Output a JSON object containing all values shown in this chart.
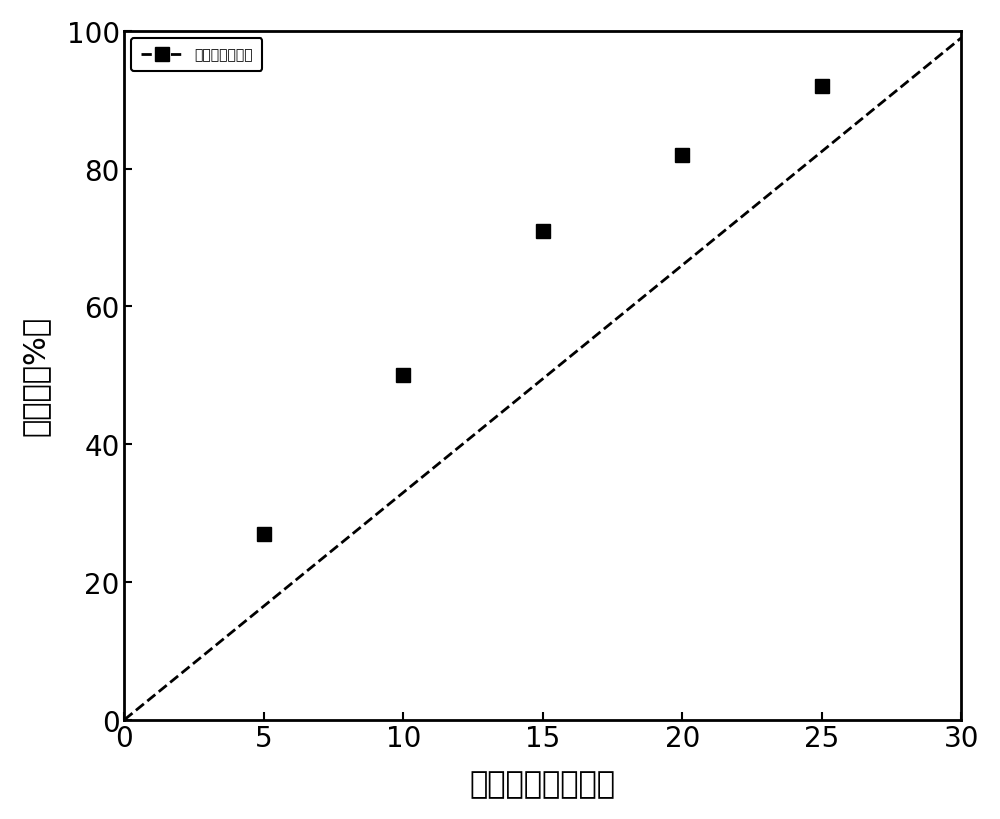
{
  "x_data": [
    5,
    10,
    15,
    20,
    25
  ],
  "y_data": [
    27,
    50,
    71,
    82,
    92
  ],
  "line_x": [
    0,
    30
  ],
  "line_y": [
    0,
    99
  ],
  "xlabel": "处理时间（分钟）",
  "ylabel": "去除率（%）",
  "legend_label": "邻苯二甲酸甲酯",
  "xlim": [
    0,
    30
  ],
  "ylim": [
    0,
    100
  ],
  "xticks": [
    0,
    5,
    10,
    15,
    20,
    25,
    30
  ],
  "yticks": [
    0,
    20,
    40,
    60,
    80,
    100
  ],
  "marker_color": "black",
  "line_color": "black",
  "marker": "s",
  "marker_size": 10,
  "line_width": 2.0,
  "axis_label_fontsize": 22,
  "tick_fontsize": 20,
  "legend_fontsize": 20,
  "background_color": "#ffffff"
}
